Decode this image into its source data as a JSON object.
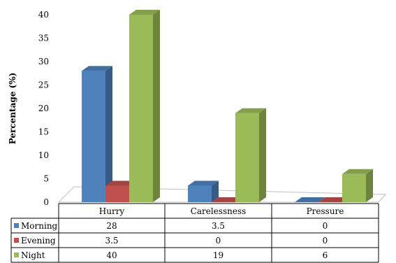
{
  "chart_data": {
    "type": "bar",
    "ylabel": "Percentage (%)",
    "ylim": [
      0,
      40
    ],
    "yticks": [
      "0",
      "5",
      "10",
      "15",
      "20",
      "25",
      "30",
      "35",
      "40"
    ],
    "categories": [
      "Hurry",
      "Carelessness",
      "Pressure"
    ],
    "series": [
      {
        "name": "Morning",
        "color": "#4f81bd",
        "values": [
          28,
          3.5,
          0
        ],
        "labels": [
          "28",
          "3.5",
          "0"
        ]
      },
      {
        "name": "Evening",
        "color": "#c0504d",
        "values": [
          3.5,
          0,
          0
        ],
        "labels": [
          "3.5",
          "0",
          "0"
        ]
      },
      {
        "name": "Night",
        "color": "#9bbb59",
        "values": [
          40,
          19,
          6
        ],
        "labels": [
          "40",
          "19",
          "6"
        ]
      }
    ],
    "legend": "data table below chart",
    "style": "3d-clustered-column"
  }
}
